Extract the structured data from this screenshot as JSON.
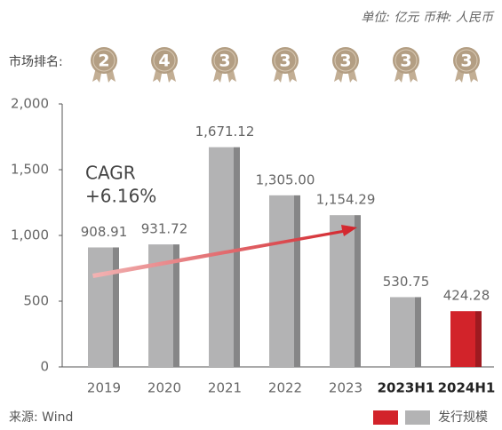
{
  "chart_data": {
    "type": "bar",
    "unit_note": "单位: 亿元  币种: 人民币",
    "rank_label": "市场排名:",
    "ranks": [
      2,
      4,
      3,
      3,
      3,
      3,
      3
    ],
    "categories": [
      "2019",
      "2020",
      "2021",
      "2022",
      "2023",
      "2023H1",
      "2024H1"
    ],
    "bold": [
      false,
      false,
      false,
      false,
      false,
      true,
      true
    ],
    "values": [
      908.91,
      931.72,
      1671.12,
      1305.0,
      1154.29,
      530.75,
      424.28
    ],
    "value_labels": [
      "908.91",
      "931.72",
      "1,671.12",
      "1,305.00",
      "1,154.29",
      "530.75",
      "424.28"
    ],
    "colors": [
      "#b3b3b4",
      "#b3b3b4",
      "#b3b3b4",
      "#b3b3b4",
      "#b3b3b4",
      "#b3b3b4",
      "#d2232a"
    ],
    "ylim": [
      0,
      2000
    ],
    "yticks": [
      0,
      500,
      {
        "value": 1000,
        "label": "1,000"
      },
      {
        "value": 1500,
        "label": "1,500"
      },
      {
        "value": 2000,
        "label": "2,000"
      }
    ],
    "annotation": [
      "CAGR",
      "+6.16%"
    ],
    "source": "来源: Wind",
    "legend": {
      "label": "发行规模",
      "colors": [
        "#d2232a",
        "#b3b3b4"
      ]
    }
  }
}
